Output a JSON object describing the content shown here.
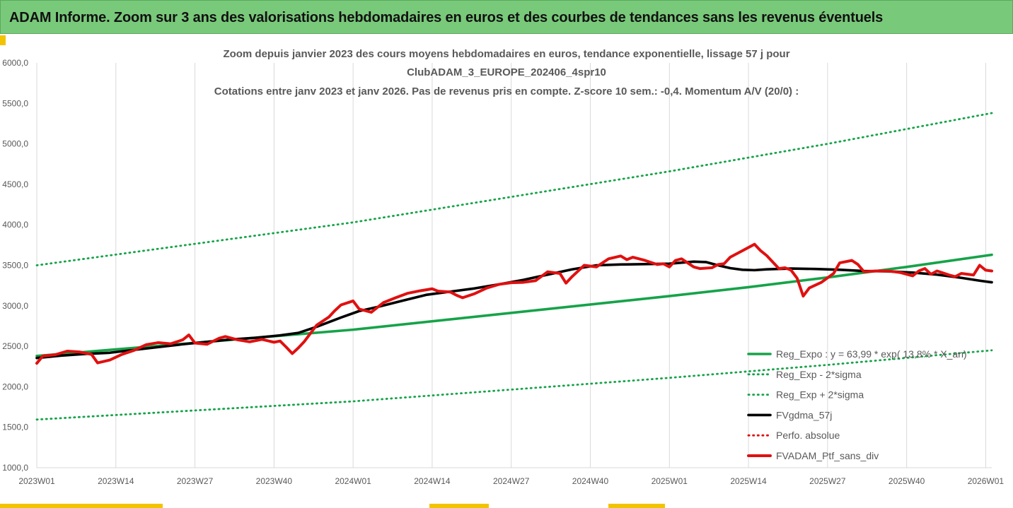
{
  "banner": {
    "title": "ADAM Informe. Zoom sur 3 ans des valorisations hebdomadaires en euros et des courbes de tendances sans les revenus éventuels"
  },
  "chart_data": {
    "type": "line",
    "title_lines": [
      "Zoom depuis janvier 2023 des cours moyens hebdomadaires  en euros, tendance exponentielle, lissage 57 j pour",
      "ClubADAM_3_EUROPE_202406_4spr10",
      "Cotations entre janv 2023 et janv 2026. Pas de revenus pris en compte. Z-score 10 sem.: -0,4. Momentum A/V (20/0) :"
    ],
    "xlabel": "",
    "ylabel": "",
    "ylim": [
      1000,
      6000
    ],
    "y_ticks": [
      {
        "value": 1000,
        "label": "1000,0"
      },
      {
        "value": 1500,
        "label": "1500,0"
      },
      {
        "value": 2000,
        "label": "2000,0"
      },
      {
        "value": 2500,
        "label": "2500,0"
      },
      {
        "value": 3000,
        "label": "3000,0"
      },
      {
        "value": 3500,
        "label": "3500,0"
      },
      {
        "value": 4000,
        "label": "4000,0"
      },
      {
        "value": 4500,
        "label": "4500,0"
      },
      {
        "value": 5000,
        "label": "5000,0"
      },
      {
        "value": 5500,
        "label": "5500,0"
      },
      {
        "value": 6000,
        "label": "6000,0"
      }
    ],
    "x_range": [
      0,
      157
    ],
    "x_ticks": [
      {
        "week_index": 0,
        "label": "2023W01"
      },
      {
        "week_index": 13,
        "label": "2023W14"
      },
      {
        "week_index": 26,
        "label": "2023W27"
      },
      {
        "week_index": 39,
        "label": "2023W40"
      },
      {
        "week_index": 52,
        "label": "2024W01"
      },
      {
        "week_index": 65,
        "label": "2024W14"
      },
      {
        "week_index": 78,
        "label": "2024W27"
      },
      {
        "week_index": 91,
        "label": "2024W40"
      },
      {
        "week_index": 104,
        "label": "2025W01"
      },
      {
        "week_index": 117,
        "label": "2025W14"
      },
      {
        "week_index": 130,
        "label": "2025W27"
      },
      {
        "week_index": 143,
        "label": "2025W40"
      },
      {
        "week_index": 156,
        "label": "2026W01"
      }
    ],
    "grid": "vertical",
    "legend_position": "bottom-right",
    "series": [
      {
        "name": "Reg_Expo : y = 63,99 * exp( 13,8% * X_an)",
        "style": "solid",
        "color": "#16a349",
        "points": [
          [
            0,
            2380
          ],
          [
            52,
            2705
          ],
          [
            104,
            3120
          ],
          [
            117,
            3230
          ],
          [
            130,
            3350
          ],
          [
            143,
            3480
          ],
          [
            157,
            3630
          ]
        ]
      },
      {
        "name": "Reg_Exp - 2*sigma",
        "style": "dotted",
        "color": "#16a349",
        "points": [
          [
            0,
            1595
          ],
          [
            52,
            1820
          ],
          [
            104,
            2110
          ],
          [
            130,
            2270
          ],
          [
            157,
            2450
          ]
        ]
      },
      {
        "name": "Reg_Exp + 2*sigma",
        "style": "dotted",
        "color": "#16a349",
        "points": [
          [
            0,
            3500
          ],
          [
            52,
            4030
          ],
          [
            104,
            4660
          ],
          [
            130,
            5000
          ],
          [
            157,
            5380
          ]
        ]
      },
      {
        "name": "FVgdma_57j",
        "style": "solid",
        "color": "#000000",
        "points": [
          [
            0,
            2355
          ],
          [
            4,
            2385
          ],
          [
            8,
            2405
          ],
          [
            12,
            2420
          ],
          [
            16,
            2455
          ],
          [
            20,
            2490
          ],
          [
            24,
            2525
          ],
          [
            28,
            2555
          ],
          [
            32,
            2585
          ],
          [
            36,
            2605
          ],
          [
            40,
            2635
          ],
          [
            43,
            2665
          ],
          [
            46,
            2740
          ],
          [
            50,
            2855
          ],
          [
            53,
            2935
          ],
          [
            56,
            2985
          ],
          [
            60,
            3060
          ],
          [
            64,
            3135
          ],
          [
            68,
            3175
          ],
          [
            72,
            3215
          ],
          [
            76,
            3265
          ],
          [
            80,
            3320
          ],
          [
            84,
            3385
          ],
          [
            88,
            3450
          ],
          [
            92,
            3500
          ],
          [
            96,
            3510
          ],
          [
            100,
            3515
          ],
          [
            104,
            3520
          ],
          [
            108,
            3545
          ],
          [
            110,
            3540
          ],
          [
            112,
            3500
          ],
          [
            114,
            3465
          ],
          [
            116,
            3445
          ],
          [
            118,
            3440
          ],
          [
            120,
            3450
          ],
          [
            124,
            3460
          ],
          [
            128,
            3455
          ],
          [
            132,
            3445
          ],
          [
            136,
            3430
          ],
          [
            140,
            3425
          ],
          [
            144,
            3410
          ],
          [
            148,
            3385
          ],
          [
            152,
            3345
          ],
          [
            155,
            3310
          ],
          [
            157,
            3290
          ]
        ]
      },
      {
        "name": "Perfo. absolue",
        "style": "dotted",
        "color": "#e01010",
        "points": []
      },
      {
        "name": "FVADAM_Ptf_sans_div",
        "style": "solid",
        "color": "#e01010",
        "points": [
          [
            0,
            2290
          ],
          [
            1,
            2380
          ],
          [
            3,
            2395
          ],
          [
            5,
            2440
          ],
          [
            7,
            2430
          ],
          [
            9,
            2400
          ],
          [
            10,
            2295
          ],
          [
            12,
            2330
          ],
          [
            14,
            2400
          ],
          [
            16,
            2450
          ],
          [
            18,
            2520
          ],
          [
            20,
            2545
          ],
          [
            22,
            2530
          ],
          [
            24,
            2580
          ],
          [
            25,
            2640
          ],
          [
            26,
            2540
          ],
          [
            28,
            2525
          ],
          [
            30,
            2600
          ],
          [
            31,
            2620
          ],
          [
            33,
            2580
          ],
          [
            35,
            2555
          ],
          [
            37,
            2585
          ],
          [
            39,
            2550
          ],
          [
            40,
            2565
          ],
          [
            41,
            2490
          ],
          [
            42,
            2410
          ],
          [
            43,
            2480
          ],
          [
            44,
            2560
          ],
          [
            46,
            2760
          ],
          [
            48,
            2860
          ],
          [
            49,
            2940
          ],
          [
            50,
            3010
          ],
          [
            52,
            3060
          ],
          [
            53,
            2960
          ],
          [
            55,
            2920
          ],
          [
            57,
            3040
          ],
          [
            59,
            3100
          ],
          [
            61,
            3155
          ],
          [
            63,
            3185
          ],
          [
            65,
            3210
          ],
          [
            66,
            3180
          ],
          [
            68,
            3170
          ],
          [
            69,
            3130
          ],
          [
            70,
            3100
          ],
          [
            72,
            3150
          ],
          [
            74,
            3220
          ],
          [
            76,
            3265
          ],
          [
            78,
            3285
          ],
          [
            80,
            3290
          ],
          [
            82,
            3310
          ],
          [
            84,
            3420
          ],
          [
            86,
            3400
          ],
          [
            87,
            3280
          ],
          [
            88,
            3360
          ],
          [
            90,
            3500
          ],
          [
            92,
            3480
          ],
          [
            94,
            3580
          ],
          [
            96,
            3615
          ],
          [
            97,
            3570
          ],
          [
            98,
            3600
          ],
          [
            100,
            3560
          ],
          [
            102,
            3510
          ],
          [
            103,
            3520
          ],
          [
            104,
            3480
          ],
          [
            105,
            3560
          ],
          [
            106,
            3580
          ],
          [
            107,
            3530
          ],
          [
            108,
            3480
          ],
          [
            109,
            3460
          ],
          [
            111,
            3470
          ],
          [
            112,
            3510
          ],
          [
            113,
            3520
          ],
          [
            114,
            3600
          ],
          [
            116,
            3680
          ],
          [
            118,
            3760
          ],
          [
            119,
            3680
          ],
          [
            120,
            3620
          ],
          [
            122,
            3460
          ],
          [
            123,
            3470
          ],
          [
            124,
            3440
          ],
          [
            125,
            3340
          ],
          [
            126,
            3120
          ],
          [
            127,
            3220
          ],
          [
            129,
            3290
          ],
          [
            131,
            3400
          ],
          [
            132,
            3530
          ],
          [
            134,
            3560
          ],
          [
            135,
            3510
          ],
          [
            136,
            3420
          ],
          [
            138,
            3430
          ],
          [
            140,
            3430
          ],
          [
            142,
            3410
          ],
          [
            144,
            3370
          ],
          [
            145,
            3430
          ],
          [
            146,
            3460
          ],
          [
            147,
            3390
          ],
          [
            148,
            3430
          ],
          [
            150,
            3380
          ],
          [
            151,
            3360
          ],
          [
            152,
            3400
          ],
          [
            153,
            3390
          ],
          [
            154,
            3380
          ],
          [
            155,
            3500
          ],
          [
            156,
            3440
          ],
          [
            157,
            3430
          ]
        ]
      }
    ],
    "legend_order": [
      "Reg_Expo : y = 63,99 * exp( 13,8% * X_an)",
      "Reg_Exp - 2*sigma",
      "Reg_Exp + 2*sigma",
      "FVgdma_57j",
      "Perfo. absolue",
      "FVADAM_Ptf_sans_div"
    ]
  }
}
